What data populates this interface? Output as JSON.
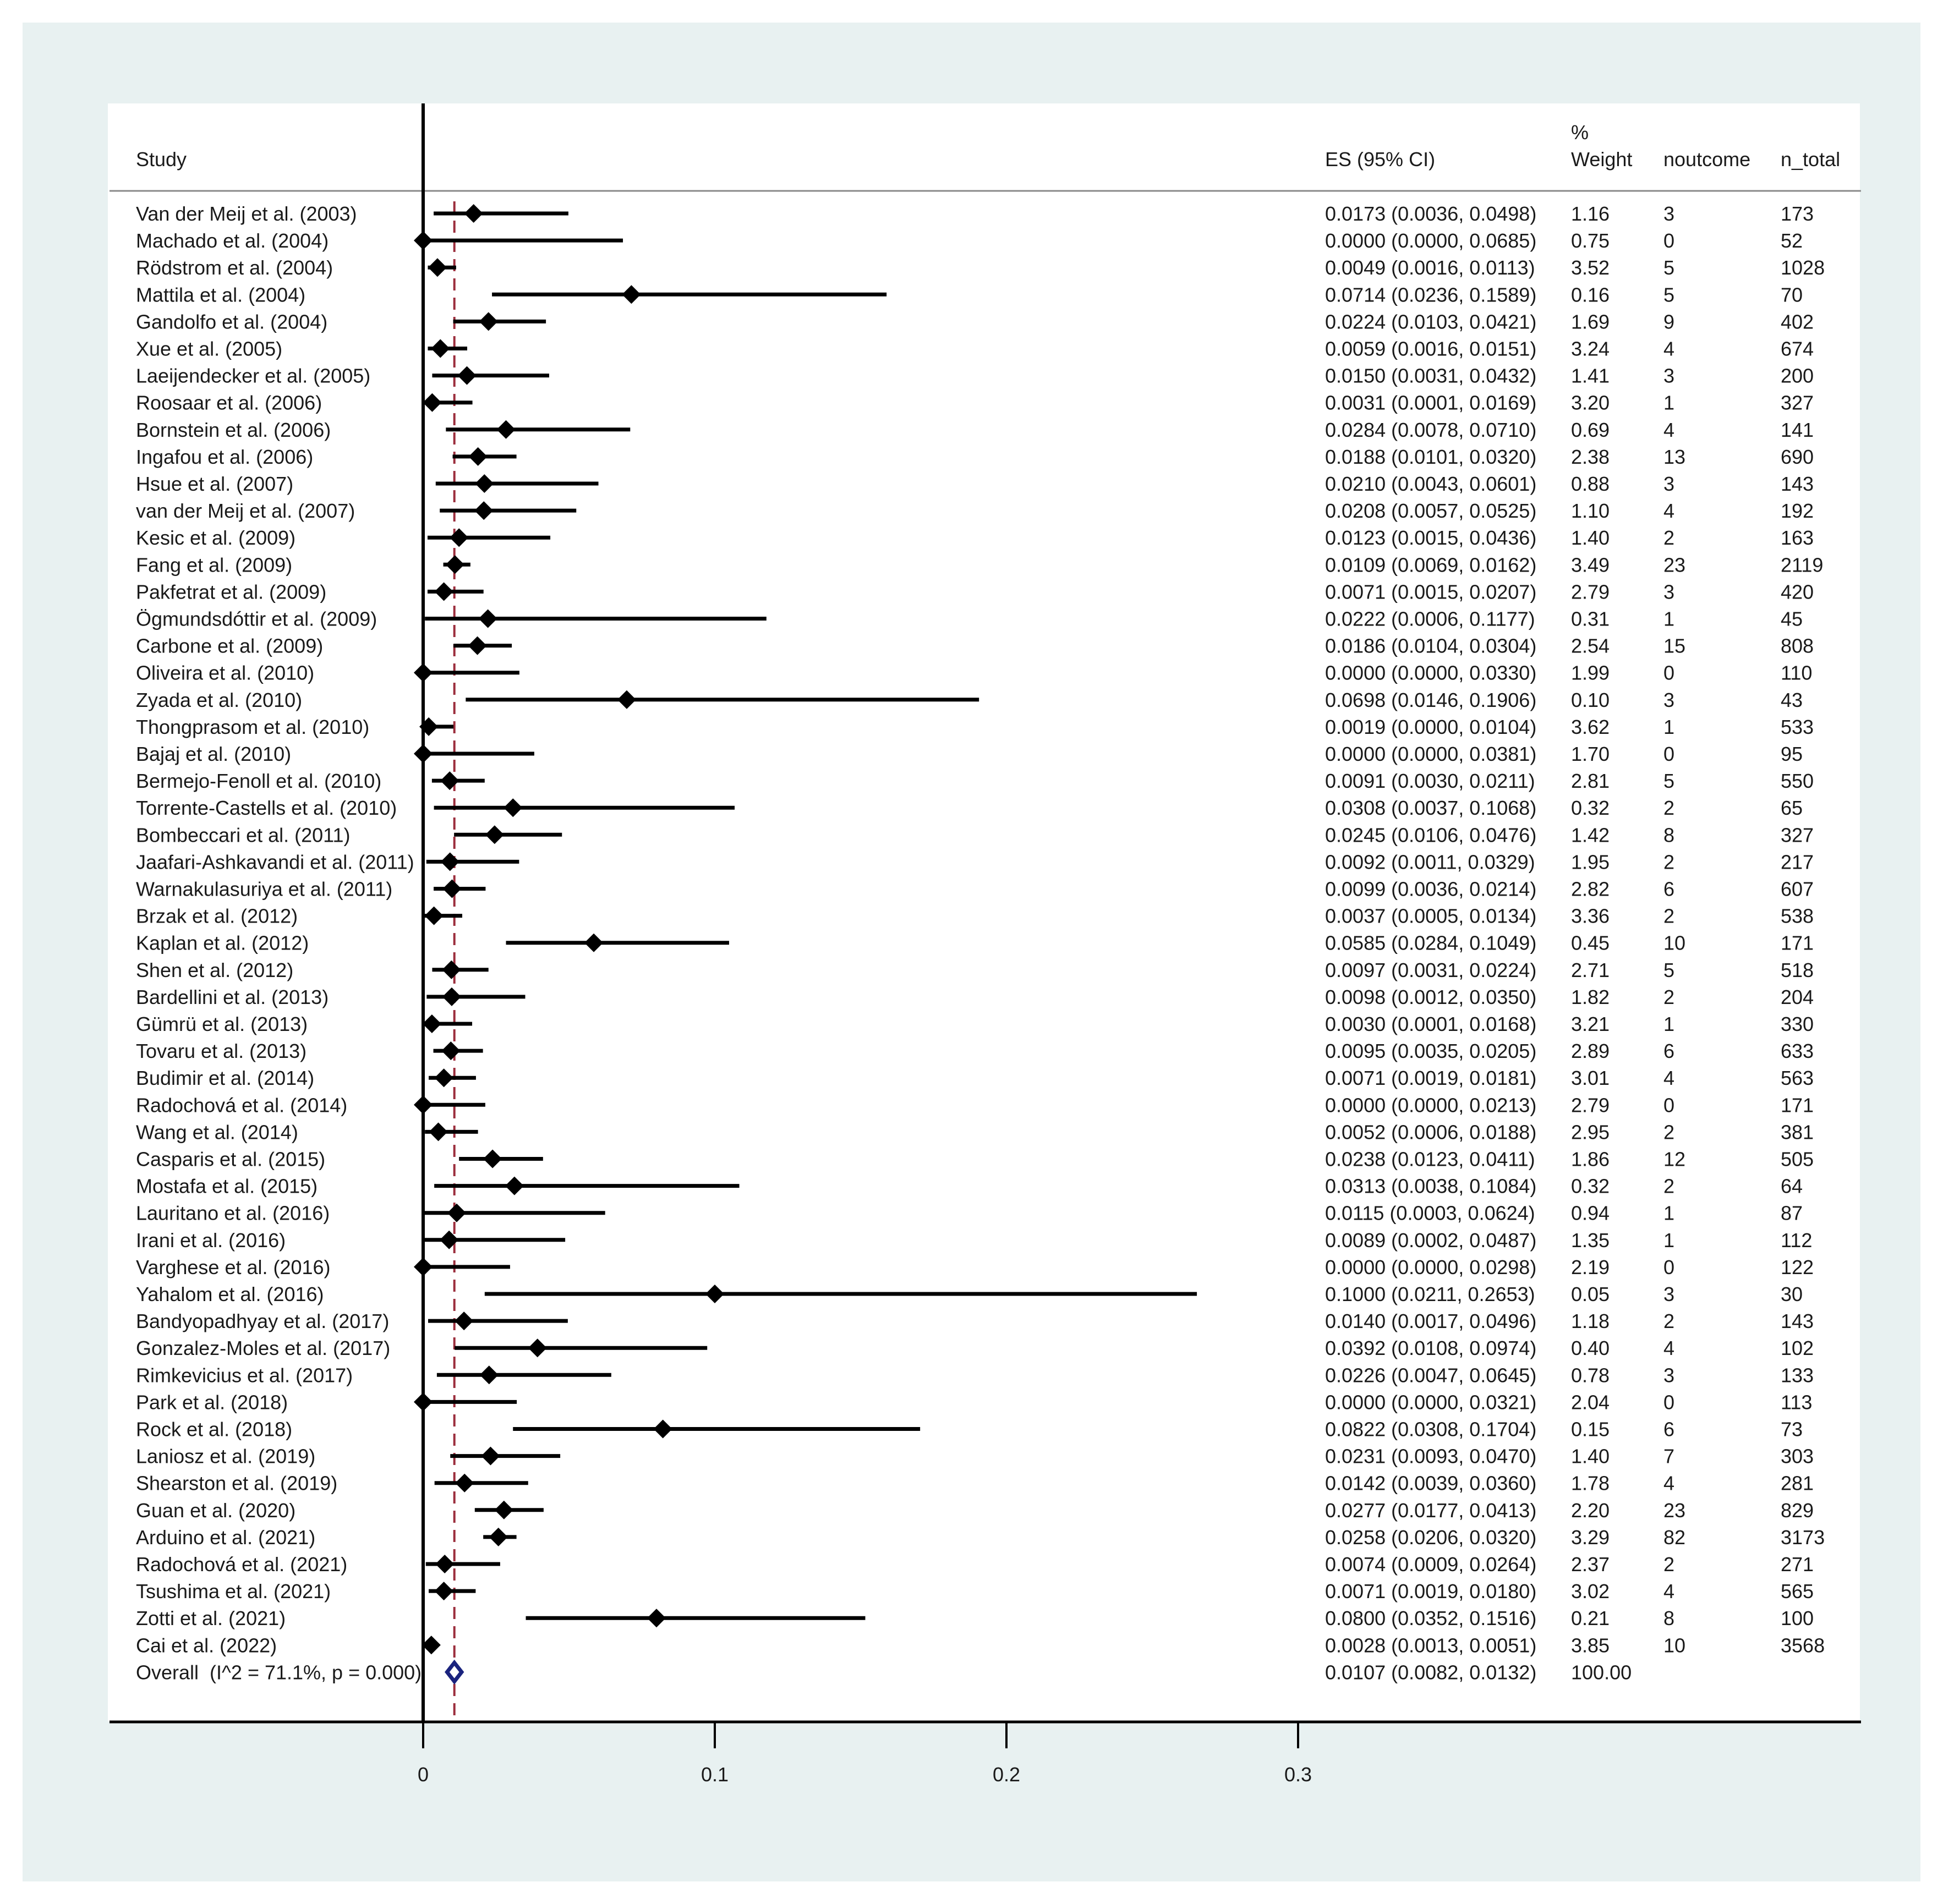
{
  "chart_data": {
    "type": "forest",
    "headers": {
      "study": "Study",
      "es": "ES (95% CI)",
      "weight_top": "%",
      "weight": "Weight",
      "noutcome": "noutcome",
      "ntotal": "n_total"
    },
    "studies": [
      {
        "name": "Van der Meij et al. (2003)",
        "es": 0.0173,
        "lo": 0.0036,
        "hi": 0.0498,
        "es_text": "0.0173 (0.0036, 0.0498)",
        "weight": "1.16",
        "noutcome": "3",
        "ntotal": "173"
      },
      {
        "name": "Machado et al. (2004)",
        "es": 0.0,
        "lo": 0.0,
        "hi": 0.0685,
        "es_text": "0.0000 (0.0000, 0.0685)",
        "weight": "0.75",
        "noutcome": "0",
        "ntotal": "52"
      },
      {
        "name": "Rödstrom et al. (2004)",
        "es": 0.0049,
        "lo": 0.0016,
        "hi": 0.0113,
        "es_text": "0.0049 (0.0016, 0.0113)",
        "weight": "3.52",
        "noutcome": "5",
        "ntotal": "1028"
      },
      {
        "name": "Mattila et al. (2004)",
        "es": 0.0714,
        "lo": 0.0236,
        "hi": 0.1589,
        "es_text": "0.0714 (0.0236, 0.1589)",
        "weight": "0.16",
        "noutcome": "5",
        "ntotal": "70"
      },
      {
        "name": "Gandolfo et al. (2004)",
        "es": 0.0224,
        "lo": 0.0103,
        "hi": 0.0421,
        "es_text": "0.0224 (0.0103, 0.0421)",
        "weight": "1.69",
        "noutcome": "9",
        "ntotal": "402"
      },
      {
        "name": "Xue et al. (2005)",
        "es": 0.0059,
        "lo": 0.0016,
        "hi": 0.0151,
        "es_text": "0.0059 (0.0016, 0.0151)",
        "weight": "3.24",
        "noutcome": "4",
        "ntotal": "674"
      },
      {
        "name": "Laeijendecker et al. (2005)",
        "es": 0.015,
        "lo": 0.0031,
        "hi": 0.0432,
        "es_text": "0.0150 (0.0031, 0.0432)",
        "weight": "1.41",
        "noutcome": "3",
        "ntotal": "200"
      },
      {
        "name": "Roosaar et al. (2006)",
        "es": 0.0031,
        "lo": 0.0001,
        "hi": 0.0169,
        "es_text": "0.0031 (0.0001, 0.0169)",
        "weight": "3.20",
        "noutcome": "1",
        "ntotal": "327"
      },
      {
        "name": "Bornstein et al. (2006)",
        "es": 0.0284,
        "lo": 0.0078,
        "hi": 0.071,
        "es_text": "0.0284 (0.0078, 0.0710)",
        "weight": "0.69",
        "noutcome": "4",
        "ntotal": "141"
      },
      {
        "name": "Ingafou et al. (2006)",
        "es": 0.0188,
        "lo": 0.0101,
        "hi": 0.032,
        "es_text": "0.0188 (0.0101, 0.0320)",
        "weight": "2.38",
        "noutcome": "13",
        "ntotal": "690"
      },
      {
        "name": "Hsue et al. (2007)",
        "es": 0.021,
        "lo": 0.0043,
        "hi": 0.0601,
        "es_text": "0.0210 (0.0043, 0.0601)",
        "weight": "0.88",
        "noutcome": "3",
        "ntotal": "143"
      },
      {
        "name": "van der Meij et al. (2007)",
        "es": 0.0208,
        "lo": 0.0057,
        "hi": 0.0525,
        "es_text": "0.0208 (0.0057, 0.0525)",
        "weight": "1.10",
        "noutcome": "4",
        "ntotal": "192"
      },
      {
        "name": "Kesic et al. (2009)",
        "es": 0.0123,
        "lo": 0.0015,
        "hi": 0.0436,
        "es_text": "0.0123 (0.0015, 0.0436)",
        "weight": "1.40",
        "noutcome": "2",
        "ntotal": "163"
      },
      {
        "name": "Fang et al. (2009)",
        "es": 0.0109,
        "lo": 0.0069,
        "hi": 0.0162,
        "es_text": "0.0109 (0.0069, 0.0162)",
        "weight": "3.49",
        "noutcome": "23",
        "ntotal": "2119"
      },
      {
        "name": "Pakfetrat et al. (2009)",
        "es": 0.0071,
        "lo": 0.0015,
        "hi": 0.0207,
        "es_text": "0.0071 (0.0015, 0.0207)",
        "weight": "2.79",
        "noutcome": "3",
        "ntotal": "420"
      },
      {
        "name": "Ögmundsdóttir et al. (2009)",
        "es": 0.0222,
        "lo": 0.0006,
        "hi": 0.1177,
        "es_text": "0.0222 (0.0006, 0.1177)",
        "weight": "0.31",
        "noutcome": "1",
        "ntotal": "45"
      },
      {
        "name": "Carbone et al. (2009)",
        "es": 0.0186,
        "lo": 0.0104,
        "hi": 0.0304,
        "es_text": "0.0186 (0.0104, 0.0304)",
        "weight": "2.54",
        "noutcome": "15",
        "ntotal": "808"
      },
      {
        "name": "Oliveira et al. (2010)",
        "es": 0.0,
        "lo": 0.0,
        "hi": 0.033,
        "es_text": "0.0000 (0.0000, 0.0330)",
        "weight": "1.99",
        "noutcome": "0",
        "ntotal": "110"
      },
      {
        "name": "Zyada et al. (2010)",
        "es": 0.0698,
        "lo": 0.0146,
        "hi": 0.1906,
        "es_text": "0.0698 (0.0146, 0.1906)",
        "weight": "0.10",
        "noutcome": "3",
        "ntotal": "43"
      },
      {
        "name": "Thongprasom et al. (2010)",
        "es": 0.0019,
        "lo": 0.0,
        "hi": 0.0104,
        "es_text": "0.0019 (0.0000, 0.0104)",
        "weight": "3.62",
        "noutcome": "1",
        "ntotal": "533"
      },
      {
        "name": "Bajaj et al. (2010)",
        "es": 0.0,
        "lo": 0.0,
        "hi": 0.0381,
        "es_text": "0.0000 (0.0000, 0.0381)",
        "weight": "1.70",
        "noutcome": "0",
        "ntotal": "95"
      },
      {
        "name": "Bermejo-Fenoll et al. (2010)",
        "es": 0.0091,
        "lo": 0.003,
        "hi": 0.0211,
        "es_text": "0.0091 (0.0030, 0.0211)",
        "weight": "2.81",
        "noutcome": "5",
        "ntotal": "550"
      },
      {
        "name": "Torrente-Castells et al. (2010)",
        "es": 0.0308,
        "lo": 0.0037,
        "hi": 0.1068,
        "es_text": "0.0308 (0.0037, 0.1068)",
        "weight": "0.32",
        "noutcome": "2",
        "ntotal": "65"
      },
      {
        "name": "Bombeccari et al. (2011)",
        "es": 0.0245,
        "lo": 0.0106,
        "hi": 0.0476,
        "es_text": "0.0245 (0.0106, 0.0476)",
        "weight": "1.42",
        "noutcome": "8",
        "ntotal": "327"
      },
      {
        "name": "Jaafari-Ashkavandi et al. (2011)",
        "es": 0.0092,
        "lo": 0.0011,
        "hi": 0.0329,
        "es_text": "0.0092 (0.0011, 0.0329)",
        "weight": "1.95",
        "noutcome": "2",
        "ntotal": "217"
      },
      {
        "name": "Warnakulasuriya et al. (2011)",
        "es": 0.0099,
        "lo": 0.0036,
        "hi": 0.0214,
        "es_text": "0.0099 (0.0036, 0.0214)",
        "weight": "2.82",
        "noutcome": "6",
        "ntotal": "607"
      },
      {
        "name": "Brzak et al. (2012)",
        "es": 0.0037,
        "lo": 0.0005,
        "hi": 0.0134,
        "es_text": "0.0037 (0.0005, 0.0134)",
        "weight": "3.36",
        "noutcome": "2",
        "ntotal": "538"
      },
      {
        "name": "Kaplan et al. (2012)",
        "es": 0.0585,
        "lo": 0.0284,
        "hi": 0.1049,
        "es_text": "0.0585 (0.0284, 0.1049)",
        "weight": "0.45",
        "noutcome": "10",
        "ntotal": "171"
      },
      {
        "name": "Shen et al. (2012)",
        "es": 0.0097,
        "lo": 0.0031,
        "hi": 0.0224,
        "es_text": "0.0097 (0.0031, 0.0224)",
        "weight": "2.71",
        "noutcome": "5",
        "ntotal": "518"
      },
      {
        "name": "Bardellini et al. (2013)",
        "es": 0.0098,
        "lo": 0.0012,
        "hi": 0.035,
        "es_text": "0.0098 (0.0012, 0.0350)",
        "weight": "1.82",
        "noutcome": "2",
        "ntotal": "204"
      },
      {
        "name": "Gümrü et al. (2013)",
        "es": 0.003,
        "lo": 0.0001,
        "hi": 0.0168,
        "es_text": "0.0030 (0.0001, 0.0168)",
        "weight": "3.21",
        "noutcome": "1",
        "ntotal": "330"
      },
      {
        "name": "Tovaru et al. (2013)",
        "es": 0.0095,
        "lo": 0.0035,
        "hi": 0.0205,
        "es_text": "0.0095 (0.0035, 0.0205)",
        "weight": "2.89",
        "noutcome": "6",
        "ntotal": "633"
      },
      {
        "name": "Budimir et al. (2014)",
        "es": 0.0071,
        "lo": 0.0019,
        "hi": 0.0181,
        "es_text": "0.0071 (0.0019, 0.0181)",
        "weight": "3.01",
        "noutcome": "4",
        "ntotal": "563"
      },
      {
        "name": "Radochová et al. (2014)",
        "es": 0.0,
        "lo": 0.0,
        "hi": 0.0213,
        "es_text": "0.0000 (0.0000, 0.0213)",
        "weight": "2.79",
        "noutcome": "0",
        "ntotal": "171"
      },
      {
        "name": "Wang et al. (2014)",
        "es": 0.0052,
        "lo": 0.0006,
        "hi": 0.0188,
        "es_text": "0.0052 (0.0006, 0.0188)",
        "weight": "2.95",
        "noutcome": "2",
        "ntotal": "381"
      },
      {
        "name": "Casparis et al. (2015)",
        "es": 0.0238,
        "lo": 0.0123,
        "hi": 0.0411,
        "es_text": "0.0238 (0.0123, 0.0411)",
        "weight": "1.86",
        "noutcome": "12",
        "ntotal": "505"
      },
      {
        "name": "Mostafa et al. (2015)",
        "es": 0.0313,
        "lo": 0.0038,
        "hi": 0.1084,
        "es_text": "0.0313 (0.0038, 0.1084)",
        "weight": "0.32",
        "noutcome": "2",
        "ntotal": "64"
      },
      {
        "name": "Lauritano et al. (2016)",
        "es": 0.0115,
        "lo": 0.0003,
        "hi": 0.0624,
        "es_text": "0.0115 (0.0003, 0.0624)",
        "weight": "0.94",
        "noutcome": "1",
        "ntotal": "87"
      },
      {
        "name": "Irani et al. (2016)",
        "es": 0.0089,
        "lo": 0.0002,
        "hi": 0.0487,
        "es_text": "0.0089 (0.0002, 0.0487)",
        "weight": "1.35",
        "noutcome": "1",
        "ntotal": "112"
      },
      {
        "name": "Varghese et al. (2016)",
        "es": 0.0,
        "lo": 0.0,
        "hi": 0.0298,
        "es_text": "0.0000 (0.0000, 0.0298)",
        "weight": "2.19",
        "noutcome": "0",
        "ntotal": "122"
      },
      {
        "name": "Yahalom et al. (2016)",
        "es": 0.1,
        "lo": 0.0211,
        "hi": 0.2653,
        "es_text": "0.1000 (0.0211, 0.2653)",
        "weight": "0.05",
        "noutcome": "3",
        "ntotal": "30"
      },
      {
        "name": "Bandyopadhyay et al. (2017)",
        "es": 0.014,
        "lo": 0.0017,
        "hi": 0.0496,
        "es_text": "0.0140 (0.0017, 0.0496)",
        "weight": "1.18",
        "noutcome": "2",
        "ntotal": "143"
      },
      {
        "name": "Gonzalez-Moles et al. (2017)",
        "es": 0.0392,
        "lo": 0.0108,
        "hi": 0.0974,
        "es_text": "0.0392 (0.0108, 0.0974)",
        "weight": "0.40",
        "noutcome": "4",
        "ntotal": "102"
      },
      {
        "name": "Rimkevicius et al. (2017)",
        "es": 0.0226,
        "lo": 0.0047,
        "hi": 0.0645,
        "es_text": "0.0226 (0.0047, 0.0645)",
        "weight": "0.78",
        "noutcome": "3",
        "ntotal": "133"
      },
      {
        "name": "Park et al. (2018)",
        "es": 0.0,
        "lo": 0.0,
        "hi": 0.0321,
        "es_text": "0.0000 (0.0000, 0.0321)",
        "weight": "2.04",
        "noutcome": "0",
        "ntotal": "113"
      },
      {
        "name": "Rock et al. (2018)",
        "es": 0.0822,
        "lo": 0.0308,
        "hi": 0.1704,
        "es_text": "0.0822 (0.0308, 0.1704)",
        "weight": "0.15",
        "noutcome": "6",
        "ntotal": "73"
      },
      {
        "name": "Laniosz et al. (2019)",
        "es": 0.0231,
        "lo": 0.0093,
        "hi": 0.047,
        "es_text": "0.0231 (0.0093, 0.0470)",
        "weight": "1.40",
        "noutcome": "7",
        "ntotal": "303"
      },
      {
        "name": "Shearston et al. (2019)",
        "es": 0.0142,
        "lo": 0.0039,
        "hi": 0.036,
        "es_text": "0.0142 (0.0039, 0.0360)",
        "weight": "1.78",
        "noutcome": "4",
        "ntotal": "281"
      },
      {
        "name": "Guan et al. (2020)",
        "es": 0.0277,
        "lo": 0.0177,
        "hi": 0.0413,
        "es_text": "0.0277 (0.0177, 0.0413)",
        "weight": "2.20",
        "noutcome": "23",
        "ntotal": "829"
      },
      {
        "name": "Arduino et al. (2021)",
        "es": 0.0258,
        "lo": 0.0206,
        "hi": 0.032,
        "es_text": "0.0258 (0.0206, 0.0320)",
        "weight": "3.29",
        "noutcome": "82",
        "ntotal": "3173"
      },
      {
        "name": "Radochová et al. (2021)",
        "es": 0.0074,
        "lo": 0.0009,
        "hi": 0.0264,
        "es_text": "0.0074 (0.0009, 0.0264)",
        "weight": "2.37",
        "noutcome": "2",
        "ntotal": "271"
      },
      {
        "name": "Tsushima et al. (2021)",
        "es": 0.0071,
        "lo": 0.0019,
        "hi": 0.018,
        "es_text": "0.0071 (0.0019, 0.0180)",
        "weight": "3.02",
        "noutcome": "4",
        "ntotal": "565"
      },
      {
        "name": "Zotti et al. (2021)",
        "es": 0.08,
        "lo": 0.0352,
        "hi": 0.1516,
        "es_text": "0.0800 (0.0352, 0.1516)",
        "weight": "0.21",
        "noutcome": "8",
        "ntotal": "100"
      },
      {
        "name": "Cai et al. (2022)",
        "es": 0.0028,
        "lo": 0.0013,
        "hi": 0.0051,
        "es_text": "0.0028 (0.0013, 0.0051)",
        "weight": "3.85",
        "noutcome": "10",
        "ntotal": "3568"
      }
    ],
    "overall": {
      "label": "Overall  (I^2 = 71.1%, p = 0.000)",
      "es": 0.0107,
      "lo": 0.0082,
      "hi": 0.0132,
      "es_text": "0.0107 (0.0082, 0.0132)",
      "weight": "100.00"
    },
    "x_axis": {
      "ticks": [
        0,
        0.1,
        0.2,
        0.3
      ],
      "tick_labels": [
        "0",
        "0.1",
        "0.2",
        "0.3"
      ]
    },
    "colors": {
      "background": "#e8f1f1",
      "marker": "#000000",
      "overall_line": "#9b2d3c",
      "overall_diamond": "#1a237e"
    }
  }
}
